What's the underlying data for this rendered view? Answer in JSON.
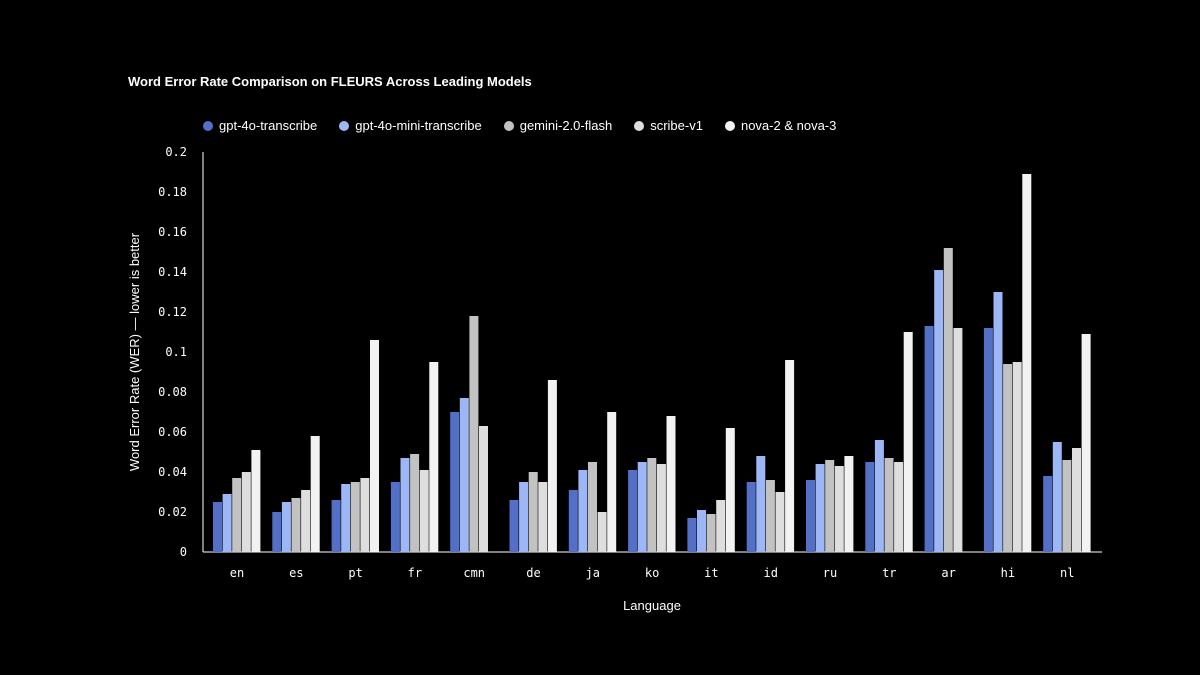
{
  "chart_data": {
    "type": "bar",
    "title": "Word Error Rate Comparison on FLEURS Across Leading Models",
    "xlabel": "Language",
    "ylabel": "Word Error Rate (WER) — lower is better",
    "ylim": [
      0,
      0.2
    ],
    "y_ticks": [
      "0",
      "0.02",
      "0.04",
      "0.06",
      "0.08",
      "0.1",
      "0.12",
      "0.14",
      "0.16",
      "0.18",
      "0.2"
    ],
    "grid": false,
    "legend_position": "top-left",
    "categories": [
      "en",
      "es",
      "pt",
      "fr",
      "cmn",
      "de",
      "ja",
      "ko",
      "it",
      "id",
      "ru",
      "tr",
      "ar",
      "hi",
      "nl"
    ],
    "series": [
      {
        "name": "gpt-4o-transcribe",
        "color": "#5470c6",
        "values": [
          0.025,
          0.02,
          0.026,
          0.035,
          0.07,
          0.026,
          0.031,
          0.041,
          0.017,
          0.035,
          0.036,
          0.045,
          0.113,
          0.112,
          0.038
        ]
      },
      {
        "name": "gpt-4o-mini-transcribe",
        "color": "#9db6f5",
        "values": [
          0.029,
          0.025,
          0.034,
          0.047,
          0.077,
          0.035,
          0.041,
          0.045,
          0.021,
          0.048,
          0.044,
          0.056,
          0.141,
          0.13,
          0.055
        ]
      },
      {
        "name": "gemini-2.0-flash",
        "color": "#c2c2c2",
        "values": [
          0.037,
          0.027,
          0.035,
          0.049,
          0.118,
          0.04,
          0.045,
          0.047,
          0.019,
          0.036,
          0.046,
          0.047,
          0.152,
          0.094,
          0.046
        ]
      },
      {
        "name": "scribe-v1",
        "color": "#dedede",
        "values": [
          0.04,
          0.031,
          0.037,
          0.041,
          0.063,
          0.035,
          0.02,
          0.044,
          0.026,
          0.03,
          0.043,
          0.045,
          0.112,
          0.095,
          0.052
        ]
      },
      {
        "name": "nova-2 & nova-3",
        "color": "#f2f2f2",
        "values": [
          0.051,
          0.058,
          0.106,
          0.095,
          null,
          0.086,
          0.07,
          0.068,
          0.062,
          0.096,
          0.048,
          0.11,
          null,
          0.189,
          0.109
        ]
      }
    ]
  }
}
